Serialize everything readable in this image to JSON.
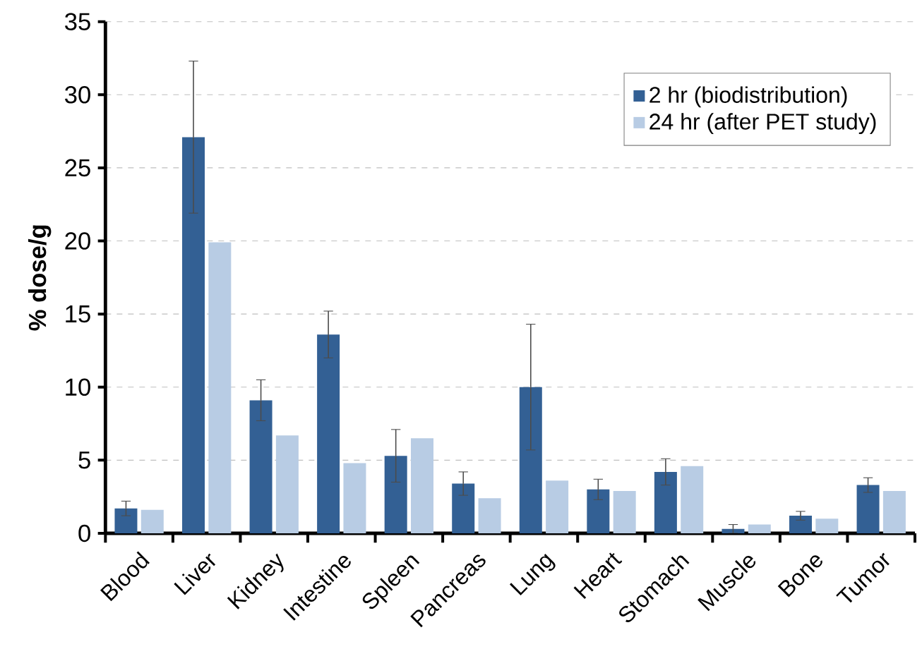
{
  "chart_data": {
    "type": "bar",
    "ylabel": "% dose/g",
    "categories": [
      "Blood",
      "Liver",
      "Kidney",
      "Intestine",
      "Spleen",
      "Pancreas",
      "Lung",
      "Heart",
      "Stomach",
      "Muscle",
      "Bone",
      "Tumor"
    ],
    "series": [
      {
        "name": "2 hr (biodistribution)",
        "color": "#336094",
        "values": [
          1.7,
          27.1,
          9.1,
          13.6,
          5.3,
          3.4,
          10.0,
          3.0,
          4.2,
          0.3,
          1.2,
          3.3
        ],
        "errors": [
          0.5,
          5.2,
          1.4,
          1.6,
          1.8,
          0.8,
          4.3,
          0.7,
          0.9,
          0.3,
          0.3,
          0.5
        ]
      },
      {
        "name": "24 hr (after PET study)",
        "color": "#b8cce4",
        "values": [
          1.6,
          19.9,
          6.7,
          4.8,
          6.5,
          2.4,
          3.6,
          2.9,
          4.6,
          0.6,
          1.0,
          2.9
        ]
      }
    ],
    "ylim": [
      0,
      35
    ],
    "yticks": [
      0,
      5,
      10,
      15,
      20,
      25,
      30,
      35
    ],
    "grid": "y",
    "legend": "top right"
  }
}
